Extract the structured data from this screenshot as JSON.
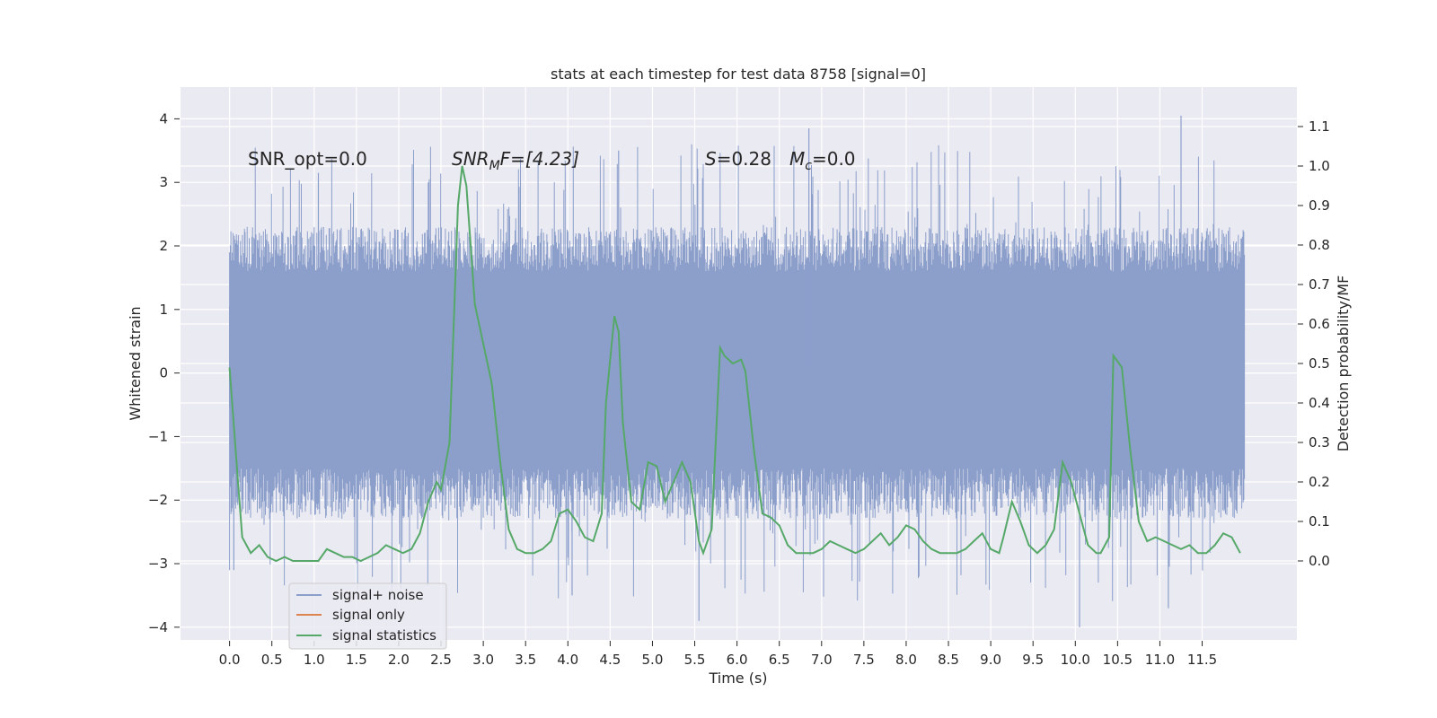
{
  "chart_data": {
    "type": "line",
    "title": "stats at each timestep for test data 8758 [signal=0]",
    "xlabel": "Time (s)",
    "ylabel_left": "Whitened strain",
    "ylabel_right": "Detection probability/MF",
    "xlim": [
      -0.58,
      12.62
    ],
    "ylim_left": [
      -4.2,
      4.5
    ],
    "ylim_right": [
      -0.2,
      1.2
    ],
    "x_ticks": [
      "0.0",
      "0.5",
      "1.0",
      "1.5",
      "2.0",
      "2.5",
      "3.0",
      "3.5",
      "4.0",
      "4.5",
      "5.0",
      "5.5",
      "6.0",
      "6.5",
      "7.0",
      "7.5",
      "8.0",
      "8.5",
      "9.0",
      "9.5",
      "10.0",
      "10.5",
      "11.0",
      "11.5"
    ],
    "y_ticks_left": [
      "4",
      "3",
      "2",
      "1",
      "0",
      "−1",
      "−2",
      "−3",
      "−4"
    ],
    "y_ticks_right": [
      "1.1",
      "1.0",
      "0.9",
      "0.8",
      "0.7",
      "0.6",
      "0.5",
      "0.4",
      "0.3",
      "0.2",
      "0.1",
      "0.0"
    ],
    "grid": true,
    "legend_position": "lower-left",
    "annotations": {
      "snr_opt": "SNR_opt=0.0",
      "snr_mf_main": "SNR",
      "snr_mf_sub": "M",
      "snr_mf_rest": "F=[4.23]",
      "s_main": "S",
      "s_rest": "=0.28",
      "mc_main": "M",
      "mc_sub": "c",
      "mc_rest": "=0.0"
    },
    "colors": {
      "signal_noise": "#8c9fcb",
      "signal_only": "#dd8452",
      "signal_statistics": "#55a868",
      "plot_bg": "#eaeaf2",
      "grid": "#ffffff"
    },
    "series": [
      {
        "name": "signal+ noise",
        "axis": "left",
        "envelope": "noise band, typically within [-2.0, 2.0] with spikes near ±4",
        "x_range": [
          0.0,
          12.0
        ]
      },
      {
        "name": "signal only",
        "axis": "left",
        "values": []
      },
      {
        "name": "signal statistics",
        "axis": "right",
        "x": [
          0.0,
          0.1,
          0.15,
          0.25,
          0.35,
          0.45,
          0.55,
          0.65,
          0.75,
          0.85,
          0.95,
          1.05,
          1.15,
          1.25,
          1.35,
          1.45,
          1.55,
          1.65,
          1.75,
          1.85,
          1.95,
          2.05,
          2.15,
          2.25,
          2.35,
          2.45,
          2.5,
          2.6,
          2.7,
          2.75,
          2.8,
          2.85,
          2.9,
          3.0,
          3.1,
          3.2,
          3.3,
          3.4,
          3.5,
          3.6,
          3.7,
          3.8,
          3.9,
          4.0,
          4.1,
          4.2,
          4.3,
          4.4,
          4.45,
          4.55,
          4.6,
          4.65,
          4.75,
          4.85,
          4.95,
          5.05,
          5.15,
          5.25,
          5.35,
          5.45,
          5.55,
          5.6,
          5.7,
          5.8,
          5.85,
          5.95,
          6.05,
          6.1,
          6.2,
          6.3,
          6.4,
          6.5,
          6.6,
          6.7,
          6.8,
          6.9,
          7.0,
          7.1,
          7.2,
          7.3,
          7.4,
          7.5,
          7.6,
          7.7,
          7.8,
          7.9,
          8.0,
          8.1,
          8.2,
          8.3,
          8.4,
          8.5,
          8.6,
          8.7,
          8.8,
          8.9,
          9.0,
          9.1,
          9.15,
          9.25,
          9.35,
          9.45,
          9.55,
          9.65,
          9.75,
          9.85,
          9.95,
          10.05,
          10.15,
          10.25,
          10.3,
          10.4,
          10.45,
          10.55,
          10.65,
          10.75,
          10.85,
          10.95,
          11.05,
          11.15,
          11.25,
          11.35,
          11.45,
          11.55,
          11.65,
          11.75,
          11.85,
          11.95
        ],
        "values": [
          0.49,
          0.2,
          0.06,
          0.02,
          0.04,
          0.01,
          0.0,
          0.01,
          0.0,
          0.0,
          0.0,
          0.0,
          0.03,
          0.02,
          0.01,
          0.01,
          0.0,
          0.01,
          0.02,
          0.04,
          0.03,
          0.02,
          0.03,
          0.07,
          0.15,
          0.2,
          0.18,
          0.3,
          0.9,
          1.0,
          0.95,
          0.8,
          0.65,
          0.55,
          0.45,
          0.25,
          0.08,
          0.03,
          0.02,
          0.02,
          0.03,
          0.05,
          0.12,
          0.13,
          0.1,
          0.06,
          0.05,
          0.12,
          0.4,
          0.62,
          0.58,
          0.35,
          0.15,
          0.13,
          0.25,
          0.24,
          0.15,
          0.2,
          0.25,
          0.2,
          0.05,
          0.02,
          0.08,
          0.54,
          0.52,
          0.5,
          0.51,
          0.48,
          0.28,
          0.12,
          0.11,
          0.09,
          0.04,
          0.02,
          0.02,
          0.02,
          0.03,
          0.05,
          0.04,
          0.03,
          0.02,
          0.03,
          0.05,
          0.07,
          0.04,
          0.06,
          0.09,
          0.08,
          0.05,
          0.03,
          0.02,
          0.02,
          0.02,
          0.03,
          0.05,
          0.07,
          0.03,
          0.02,
          0.06,
          0.15,
          0.1,
          0.04,
          0.02,
          0.04,
          0.08,
          0.25,
          0.2,
          0.12,
          0.04,
          0.02,
          0.02,
          0.06,
          0.52,
          0.49,
          0.28,
          0.1,
          0.05,
          0.06,
          0.05,
          0.04,
          0.03,
          0.04,
          0.02,
          0.02,
          0.04,
          0.07,
          0.06,
          0.02
        ]
      }
    ]
  }
}
